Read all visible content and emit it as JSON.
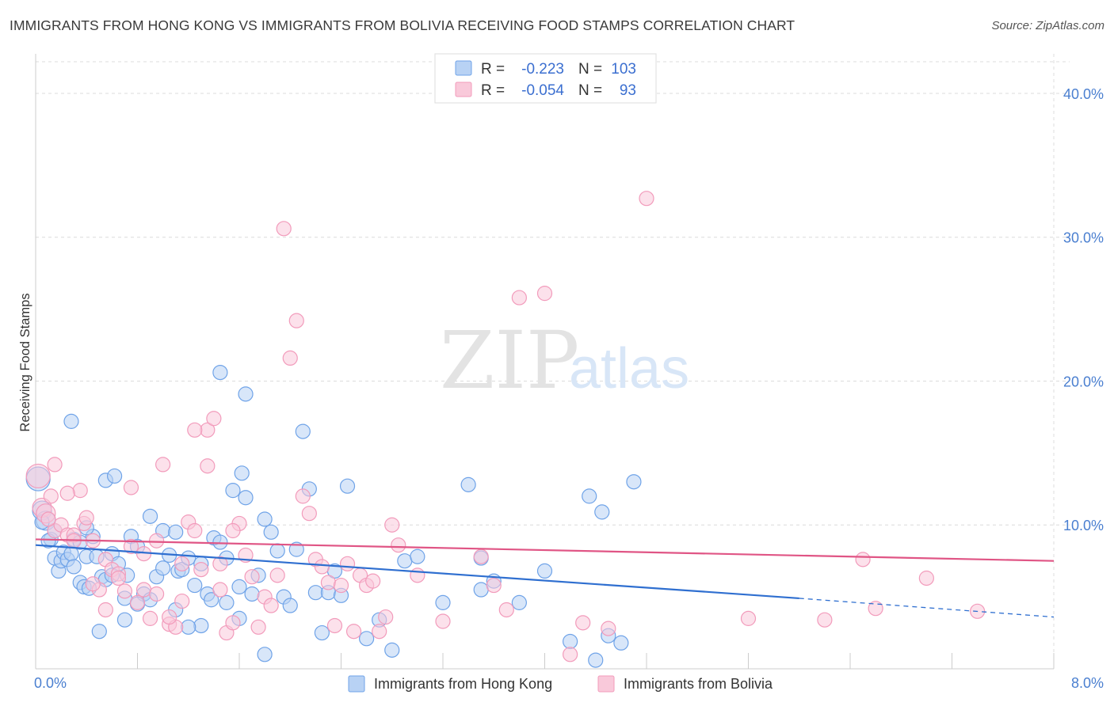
{
  "title": "IMMIGRANTS FROM HONG KONG VS IMMIGRANTS FROM BOLIVIA RECEIVING FOOD STAMPS CORRELATION CHART",
  "source": "Source: ZipAtlas.com",
  "watermark": {
    "zip": "ZIP",
    "atlas": "atlas"
  },
  "chart_data": {
    "type": "scatter",
    "xlabel": "",
    "ylabel": "Receiving Food Stamps",
    "xlim": [
      0,
      8
    ],
    "ylim": [
      0,
      40
    ],
    "x_tick_labels": [
      {
        "value": 0,
        "label": "0.0%"
      },
      {
        "value": 8,
        "label": "8.0%"
      }
    ],
    "y_tick_labels": [
      {
        "value": 10,
        "label": "10.0%"
      },
      {
        "value": 20,
        "label": "20.0%"
      },
      {
        "value": 30,
        "label": "30.0%"
      },
      {
        "value": 40,
        "label": "40.0%"
      }
    ],
    "grid": true,
    "legend_position": "top-center",
    "legend": [
      {
        "r_label": "R =",
        "r_value": "-0.223",
        "n_label": "N =",
        "n_value": "103",
        "color": "#6fa3e8"
      },
      {
        "r_label": "R =",
        "r_value": "-0.054",
        "n_label": "N =",
        "n_value": "93",
        "color": "#f29bbb"
      }
    ],
    "series": [
      {
        "name": "Immigrants from Hong Kong",
        "color": "#6fa3e8",
        "fill": "#b8d2f4",
        "trend": {
          "x": [
            0,
            6.0
          ],
          "y": [
            8.6,
            4.9
          ],
          "dashed_to": [
            8.0,
            3.6
          ],
          "color": "#2f6fd0"
        },
        "points": [
          [
            0.02,
            13.2
          ],
          [
            0.05,
            11.0
          ],
          [
            0.08,
            10.3
          ],
          [
            0.12,
            9.0
          ],
          [
            0.15,
            7.7
          ],
          [
            0.18,
            6.8
          ],
          [
            0.2,
            7.5
          ],
          [
            0.22,
            8.1
          ],
          [
            0.25,
            7.6
          ],
          [
            0.28,
            8.0
          ],
          [
            0.3,
            9.0
          ],
          [
            0.35,
            6.0
          ],
          [
            0.38,
            5.7
          ],
          [
            0.4,
            7.8
          ],
          [
            0.45,
            9.2
          ],
          [
            0.48,
            7.8
          ],
          [
            0.52,
            6.4
          ],
          [
            0.55,
            6.2
          ],
          [
            0.6,
            8.0
          ],
          [
            0.65,
            7.3
          ],
          [
            0.7,
            4.9
          ],
          [
            0.72,
            6.5
          ],
          [
            0.75,
            9.2
          ],
          [
            0.8,
            8.5
          ],
          [
            0.85,
            5.2
          ],
          [
            0.9,
            10.6
          ],
          [
            0.95,
            6.4
          ],
          [
            1.0,
            9.6
          ],
          [
            1.05,
            7.9
          ],
          [
            1.1,
            4.1
          ],
          [
            1.12,
            6.8
          ],
          [
            1.15,
            6.9
          ],
          [
            1.2,
            7.7
          ],
          [
            1.25,
            5.8
          ],
          [
            1.3,
            3.0
          ],
          [
            1.35,
            5.2
          ],
          [
            1.38,
            4.8
          ],
          [
            1.4,
            9.1
          ],
          [
            1.45,
            8.8
          ],
          [
            1.5,
            4.6
          ],
          [
            1.55,
            12.4
          ],
          [
            1.6,
            3.5
          ],
          [
            1.62,
            13.6
          ],
          [
            1.65,
            11.9
          ],
          [
            1.7,
            5.2
          ],
          [
            1.75,
            6.5
          ],
          [
            1.8,
            10.4
          ],
          [
            1.85,
            9.5
          ],
          [
            1.9,
            8.2
          ],
          [
            1.95,
            5.0
          ],
          [
            2.0,
            4.4
          ],
          [
            2.05,
            8.3
          ],
          [
            2.1,
            16.5
          ],
          [
            2.15,
            12.5
          ],
          [
            2.2,
            5.3
          ],
          [
            2.25,
            2.5
          ],
          [
            2.3,
            5.3
          ],
          [
            2.35,
            6.8
          ],
          [
            2.4,
            5.1
          ],
          [
            2.45,
            12.7
          ],
          [
            0.55,
            13.1
          ],
          [
            0.62,
            13.4
          ],
          [
            0.4,
            9.8
          ],
          [
            0.28,
            17.2
          ],
          [
            1.45,
            20.6
          ],
          [
            1.65,
            19.1
          ],
          [
            0.8,
            4.5
          ],
          [
            0.5,
            2.6
          ],
          [
            0.7,
            3.4
          ],
          [
            1.8,
            1.0
          ],
          [
            1.3,
            7.3
          ],
          [
            1.2,
            2.9
          ],
          [
            0.35,
            8.8
          ],
          [
            0.42,
            5.6
          ],
          [
            0.6,
            6.5
          ],
          [
            0.9,
            4.8
          ],
          [
            1.0,
            7.0
          ],
          [
            1.1,
            9.5
          ],
          [
            1.5,
            7.7
          ],
          [
            1.6,
            5.7
          ],
          [
            2.8,
            1.3
          ],
          [
            2.6,
            2.1
          ],
          [
            2.7,
            3.4
          ],
          [
            2.9,
            7.5
          ],
          [
            3.0,
            7.8
          ],
          [
            3.2,
            4.6
          ],
          [
            3.5,
            7.7
          ],
          [
            3.6,
            6.1
          ],
          [
            3.8,
            4.6
          ],
          [
            4.0,
            6.8
          ],
          [
            4.2,
            1.9
          ],
          [
            4.4,
            0.6
          ],
          [
            4.5,
            2.3
          ],
          [
            4.6,
            1.8
          ],
          [
            4.7,
            13.0
          ],
          [
            4.35,
            12.0
          ],
          [
            4.45,
            10.9
          ],
          [
            3.4,
            12.8
          ],
          [
            3.5,
            5.5
          ],
          [
            0.1,
            8.9
          ],
          [
            0.15,
            9.6
          ],
          [
            0.3,
            7.1
          ],
          [
            0.05,
            10.2
          ]
        ]
      },
      {
        "name": "Immigrants from Bolivia",
        "color": "#f29bbb",
        "fill": "#f9c9da",
        "trend": {
          "x": [
            0,
            8.0
          ],
          "y": [
            9.0,
            7.5
          ],
          "color": "#e05585"
        },
        "points": [
          [
            0.02,
            13.4
          ],
          [
            0.05,
            11.2
          ],
          [
            0.08,
            10.8
          ],
          [
            0.12,
            12.0
          ],
          [
            0.15,
            9.6
          ],
          [
            0.2,
            10.0
          ],
          [
            0.25,
            9.3
          ],
          [
            0.3,
            9.3
          ],
          [
            0.35,
            12.4
          ],
          [
            0.38,
            10.1
          ],
          [
            0.4,
            10.5
          ],
          [
            0.45,
            8.9
          ],
          [
            0.5,
            5.5
          ],
          [
            0.55,
            7.6
          ],
          [
            0.6,
            6.9
          ],
          [
            0.65,
            6.6
          ],
          [
            0.7,
            5.4
          ],
          [
            0.75,
            8.5
          ],
          [
            0.8,
            4.6
          ],
          [
            0.85,
            5.5
          ],
          [
            0.9,
            3.5
          ],
          [
            0.95,
            8.9
          ],
          [
            1.0,
            14.2
          ],
          [
            1.05,
            3.1
          ],
          [
            1.1,
            2.9
          ],
          [
            1.15,
            7.3
          ],
          [
            1.2,
            10.2
          ],
          [
            1.25,
            9.6
          ],
          [
            1.3,
            6.9
          ],
          [
            1.35,
            16.6
          ],
          [
            1.4,
            17.4
          ],
          [
            1.45,
            7.3
          ],
          [
            1.5,
            2.5
          ],
          [
            1.55,
            3.2
          ],
          [
            1.6,
            10.1
          ],
          [
            1.65,
            7.9
          ],
          [
            1.7,
            6.4
          ],
          [
            1.75,
            2.9
          ],
          [
            1.8,
            5.0
          ],
          [
            1.85,
            4.4
          ],
          [
            1.9,
            6.5
          ],
          [
            1.95,
            30.6
          ],
          [
            2.0,
            21.6
          ],
          [
            2.05,
            24.2
          ],
          [
            2.1,
            12.0
          ],
          [
            2.15,
            10.8
          ],
          [
            2.2,
            7.6
          ],
          [
            2.25,
            7.1
          ],
          [
            2.3,
            6.0
          ],
          [
            2.35,
            3.0
          ],
          [
            2.4,
            5.8
          ],
          [
            2.45,
            7.3
          ],
          [
            2.5,
            2.6
          ],
          [
            2.55,
            6.5
          ],
          [
            2.6,
            5.8
          ],
          [
            2.65,
            6.1
          ],
          [
            2.7,
            2.6
          ],
          [
            2.75,
            3.6
          ],
          [
            2.8,
            10.0
          ],
          [
            2.85,
            8.6
          ],
          [
            3.0,
            6.5
          ],
          [
            3.2,
            3.3
          ],
          [
            3.5,
            7.8
          ],
          [
            3.6,
            5.8
          ],
          [
            3.7,
            4.1
          ],
          [
            3.8,
            25.8
          ],
          [
            4.0,
            26.1
          ],
          [
            4.2,
            1.0
          ],
          [
            4.3,
            3.2
          ],
          [
            4.5,
            2.8
          ],
          [
            4.8,
            32.7
          ],
          [
            5.6,
            3.5
          ],
          [
            6.2,
            3.4
          ],
          [
            6.5,
            7.6
          ],
          [
            6.6,
            4.2
          ],
          [
            7.0,
            6.3
          ],
          [
            7.4,
            4.0
          ],
          [
            0.15,
            14.2
          ],
          [
            0.25,
            12.2
          ],
          [
            0.45,
            5.9
          ],
          [
            0.55,
            4.1
          ],
          [
            0.65,
            6.3
          ],
          [
            0.75,
            12.6
          ],
          [
            0.85,
            8.0
          ],
          [
            0.95,
            5.2
          ],
          [
            1.05,
            3.6
          ],
          [
            1.15,
            4.7
          ],
          [
            1.25,
            16.6
          ],
          [
            1.35,
            14.1
          ],
          [
            1.45,
            5.5
          ],
          [
            1.55,
            9.6
          ],
          [
            0.1,
            10.4
          ],
          [
            0.3,
            8.9
          ]
        ]
      }
    ]
  }
}
